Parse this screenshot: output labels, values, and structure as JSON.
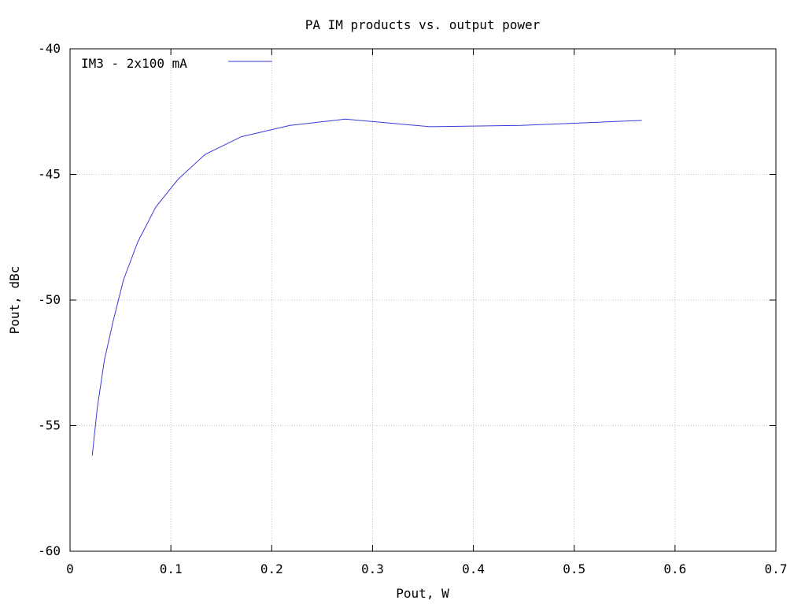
{
  "chart_data": {
    "type": "line",
    "title": "PA IM products vs. output power",
    "xlabel": "Pout, W",
    "ylabel": "Pout, dBc",
    "xlim": [
      0,
      0.7
    ],
    "ylim": [
      -60,
      -40
    ],
    "grid": true,
    "legend_position": "top-left",
    "x_ticks": [
      "0",
      "0.1",
      "0.2",
      "0.3",
      "0.4",
      "0.5",
      "0.6",
      "0.7"
    ],
    "y_ticks": [
      "-40",
      "-45",
      "-50",
      "-55",
      "-60"
    ],
    "series": [
      {
        "name": "IM3 - 2x100 mA",
        "color": "#3b3bd6",
        "x": [
          0.022,
          0.027,
          0.034,
          0.043,
          0.053,
          0.067,
          0.085,
          0.107,
          0.134,
          0.17,
          0.218,
          0.273,
          0.357,
          0.447,
          0.567
        ],
        "y": [
          -56.2,
          -54.3,
          -52.4,
          -50.8,
          -49.2,
          -47.7,
          -46.3,
          -45.2,
          -44.2,
          -43.5,
          -43.05,
          -42.8,
          -43.1,
          -43.05,
          -42.85
        ]
      }
    ]
  }
}
